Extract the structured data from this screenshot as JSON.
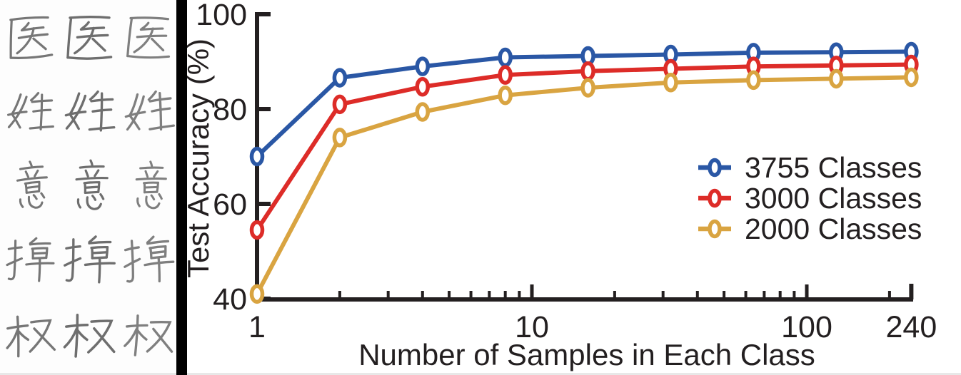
{
  "left_panel": {
    "description": "Handwritten Chinese character samples, 5 characters with 3 writing variants each",
    "characters": [
      "医",
      "姓",
      "意",
      "掉",
      "权"
    ],
    "variants_per_character": 3
  },
  "chart_data": {
    "type": "line",
    "xlabel": "Number of Samples in Each Class",
    "ylabel": "Test Accuracy (%)",
    "x_scale": "log",
    "x": [
      1,
      2,
      4,
      8,
      16,
      32,
      64,
      128,
      240
    ],
    "xlim": [
      1,
      240
    ],
    "ylim": [
      40,
      100
    ],
    "yticks": [
      40,
      60,
      80,
      100
    ],
    "ytick_labels": [
      "40",
      "60",
      "80",
      "100"
    ],
    "xticks_labeled": [
      1,
      10,
      100,
      240
    ],
    "xtick_labels": [
      "1",
      "10",
      "100",
      "240"
    ],
    "x_minor_ticks": [
      2,
      3,
      4,
      5,
      6,
      7,
      8,
      9,
      20,
      30,
      40,
      50,
      60,
      70,
      80,
      90,
      200
    ],
    "grid": false,
    "legend_position": "middle-right",
    "marker": "open-ellipse",
    "axis_color": "#231f20",
    "series": [
      {
        "name": "3755 Classes",
        "color": "#2a57a5",
        "values": [
          70.0,
          86.6,
          89.0,
          90.9,
          91.2,
          91.5,
          91.9,
          92.0,
          92.1
        ]
      },
      {
        "name": "3000 Classes",
        "color": "#dd2c28",
        "values": [
          54.5,
          81.0,
          84.7,
          87.2,
          88.0,
          88.5,
          89.0,
          89.2,
          89.4
        ]
      },
      {
        "name": "2000 Classes",
        "color": "#d9a441",
        "values": [
          41.0,
          74.0,
          79.4,
          82.9,
          84.5,
          85.6,
          86.1,
          86.4,
          86.7
        ]
      }
    ]
  }
}
